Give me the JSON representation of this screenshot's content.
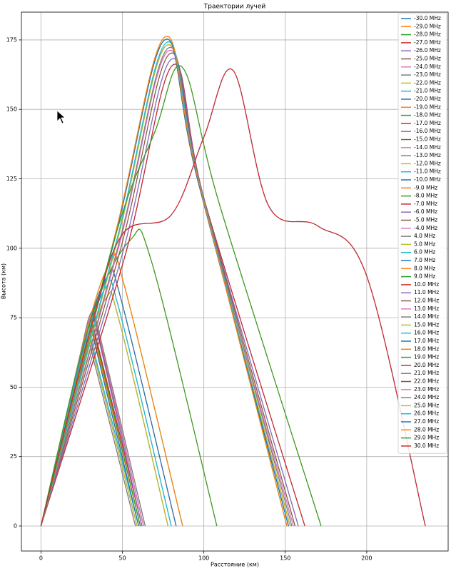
{
  "chart_data": {
    "type": "line",
    "title": "Траектории лучей",
    "x_label": "Расстояние (км)",
    "y_label": "Высота (км)",
    "xlim": [
      -12,
      250
    ],
    "ylim": [
      -9,
      185
    ],
    "xticks": [
      0,
      50,
      100,
      150,
      200
    ],
    "yticks": [
      0,
      25,
      50,
      75,
      100,
      125,
      150,
      175
    ],
    "grid": true,
    "legend": "upper right",
    "series": [
      {
        "name": "-30.0 MHz",
        "color": "#1f77b4",
        "x": [
          0,
          30,
          50,
          80,
          100,
          118,
          140,
          170,
          200,
          236
        ],
        "values": [
          0,
          70,
          105,
          112,
          140,
          164,
          115,
          108,
          90,
          0
        ]
      },
      {
        "name": "-29.0 MHz",
        "color": "#ff7f0e",
        "x": [
          0,
          45,
          70,
          87,
          110,
          172
        ],
        "values": [
          0,
          103,
          142,
          165,
          115,
          0
        ]
      },
      {
        "name": "-28.0 MHz",
        "color": "#2ca02c",
        "x": [
          0,
          46,
          76,
          96,
          151
        ],
        "values": [
          0,
          106,
          176,
          126,
          0
        ]
      },
      {
        "name": "-27.0 MHz",
        "color": "#d62728",
        "x": [
          0,
          46,
          76,
          96,
          152
        ],
        "values": [
          0,
          105,
          175,
          125,
          0
        ]
      },
      {
        "name": "-26.0 MHz",
        "color": "#9467bd",
        "x": [
          0,
          47,
          77,
          97,
          152
        ],
        "values": [
          0,
          104,
          174,
          124,
          0
        ]
      },
      {
        "name": "-25.0 MHz",
        "color": "#8c564b",
        "x": [
          0,
          47,
          77,
          97,
          153
        ],
        "values": [
          0,
          103,
          173,
          123,
          0
        ]
      },
      {
        "name": "-24.0 MHz",
        "color": "#e377c2",
        "x": [
          0,
          48,
          78,
          98,
          154
        ],
        "values": [
          0,
          102,
          172,
          122,
          0
        ]
      },
      {
        "name": "-23.0 MHz",
        "color": "#7f7f7f",
        "x": [
          0,
          48,
          78,
          98,
          155
        ],
        "values": [
          0,
          101,
          171,
          121,
          0
        ]
      },
      {
        "name": "-22.0 MHz",
        "color": "#bcbd22",
        "x": [
          0,
          49,
          79,
          99,
          156
        ],
        "values": [
          0,
          100,
          170,
          120,
          0
        ]
      },
      {
        "name": "-21.0 MHz",
        "color": "#17becf",
        "x": [
          0,
          50,
          80,
          100,
          158
        ],
        "values": [
          0,
          98,
          168,
          118,
          0
        ]
      },
      {
        "name": "-20.0 MHz",
        "color": "#1f77b4",
        "x": [
          0,
          51,
          81,
          101,
          162
        ],
        "values": [
          0,
          96,
          166,
          116,
          0
        ]
      },
      {
        "name": "-19.0 MHz",
        "color": "#ff7f0e",
        "x": [
          0,
          30,
          55,
          68,
          108
        ],
        "values": [
          0,
          73,
          103,
          95,
          0
        ]
      },
      {
        "name": "-18.0 MHz",
        "color": "#2ca02c",
        "x": [
          0,
          28,
          43,
          51,
          87
        ],
        "values": [
          0,
          70,
          95,
          87,
          0
        ]
      },
      {
        "name": "-17.0 MHz",
        "color": "#d62728",
        "x": [
          0,
          26,
          41,
          49,
          83
        ],
        "values": [
          0,
          65,
          90,
          82,
          0
        ]
      },
      {
        "name": "-16.0 MHz",
        "color": "#9467bd",
        "x": [
          0,
          25,
          40,
          48,
          80
        ],
        "values": [
          0,
          61,
          86,
          78,
          0
        ]
      },
      {
        "name": "-15.0 MHz",
        "color": "#8c564b",
        "x": [
          0,
          25,
          40,
          48,
          78
        ],
        "values": [
          0,
          57,
          82,
          74,
          0
        ]
      },
      {
        "name": "-14.0 MHz",
        "color": "#e377c2",
        "x": [
          0,
          23,
          31,
          36,
          64
        ],
        "values": [
          0,
          59,
          77,
          69,
          0
        ]
      },
      {
        "name": "-13.0 MHz",
        "color": "#7f7f7f",
        "x": [
          0,
          23,
          31,
          36,
          63
        ],
        "values": [
          0,
          58,
          76,
          68,
          0
        ]
      },
      {
        "name": "-12.0 MHz",
        "color": "#bcbd22",
        "x": [
          0,
          23,
          31,
          36,
          63
        ],
        "values": [
          0,
          57,
          75,
          67,
          0
        ]
      },
      {
        "name": "-11.0 MHz",
        "color": "#17becf",
        "x": [
          0,
          23,
          31,
          36,
          62
        ],
        "values": [
          0,
          56,
          74,
          66,
          0
        ]
      },
      {
        "name": "-10.0 MHz",
        "color": "#1f77b4",
        "x": [
          0,
          22,
          30,
          35,
          62
        ],
        "values": [
          0,
          55,
          73,
          65,
          0
        ]
      },
      {
        "name": "-9.0 MHz",
        "color": "#ff7f0e",
        "x": [
          0,
          22,
          30,
          35,
          61
        ],
        "values": [
          0,
          54,
          72,
          64,
          0
        ]
      },
      {
        "name": "-8.0 MHz",
        "color": "#2ca02c",
        "x": [
          0,
          22,
          30,
          35,
          61
        ],
        "values": [
          0,
          52.5,
          70.5,
          62.5,
          0
        ]
      },
      {
        "name": "-7.0 MHz",
        "color": "#d62728",
        "x": [
          0,
          22,
          30,
          35,
          60
        ],
        "values": [
          0,
          51,
          69,
          61,
          0
        ]
      },
      {
        "name": "-6.0 MHz",
        "color": "#9467bd",
        "x": [
          0,
          21,
          29,
          34,
          60
        ],
        "values": [
          0,
          49.5,
          67.5,
          59.5,
          0
        ]
      },
      {
        "name": "-5.0 MHz",
        "color": "#8c564b",
        "x": [
          0,
          21,
          29,
          34,
          59
        ],
        "values": [
          0,
          48,
          66,
          58,
          0
        ]
      },
      {
        "name": "-4.0 MHz",
        "color": "#e377c2",
        "x": [
          0,
          21,
          29,
          34,
          58
        ],
        "values": [
          0,
          46,
          64,
          56,
          0
        ]
      },
      {
        "name": "4.0 MHz",
        "color": "#7f7f7f",
        "x": [
          0,
          21,
          29,
          34,
          58
        ],
        "values": [
          0,
          46,
          64,
          56,
          0
        ]
      },
      {
        "name": "5.0 MHz",
        "color": "#bcbd22",
        "x": [
          0,
          21,
          29,
          34,
          59
        ],
        "values": [
          0,
          48,
          66,
          58,
          0
        ]
      },
      {
        "name": "6.0 MHz",
        "color": "#17becf",
        "x": [
          0,
          21,
          29,
          34,
          60
        ],
        "values": [
          0,
          49.5,
          67.5,
          59.5,
          0
        ]
      },
      {
        "name": "7.0 MHz",
        "color": "#1f77b4",
        "x": [
          0,
          22,
          30,
          35,
          60
        ],
        "values": [
          0,
          51,
          69,
          61,
          0
        ]
      },
      {
        "name": "8.0 MHz",
        "color": "#ff7f0e",
        "x": [
          0,
          22,
          30,
          35,
          61
        ],
        "values": [
          0,
          52.5,
          70.5,
          62.5,
          0
        ]
      },
      {
        "name": "9.0 MHz",
        "color": "#2ca02c",
        "x": [
          0,
          22,
          30,
          35,
          61
        ],
        "values": [
          0,
          54,
          72,
          64,
          0
        ]
      },
      {
        "name": "10.0 MHz",
        "color": "#d62728",
        "x": [
          0,
          22,
          30,
          35,
          62
        ],
        "values": [
          0,
          55,
          73,
          65,
          0
        ]
      },
      {
        "name": "11.0 MHz",
        "color": "#9467bd",
        "x": [
          0,
          23,
          31,
          36,
          62
        ],
        "values": [
          0,
          56,
          74,
          66,
          0
        ]
      },
      {
        "name": "12.0 MHz",
        "color": "#8c564b",
        "x": [
          0,
          23,
          31,
          36,
          63
        ],
        "values": [
          0,
          57,
          75,
          67,
          0
        ]
      },
      {
        "name": "13.0 MHz",
        "color": "#e377c2",
        "x": [
          0,
          23,
          31,
          36,
          63
        ],
        "values": [
          0,
          58,
          76,
          68,
          0
        ]
      },
      {
        "name": "14.0 MHz",
        "color": "#7f7f7f",
        "x": [
          0,
          23,
          31,
          36,
          64
        ],
        "values": [
          0,
          59,
          77,
          69,
          0
        ]
      },
      {
        "name": "15.0 MHz",
        "color": "#bcbd22",
        "x": [
          0,
          25,
          40,
          48,
          78
        ],
        "values": [
          0,
          57,
          82,
          74,
          0
        ]
      },
      {
        "name": "16.0 MHz",
        "color": "#17becf",
        "x": [
          0,
          25,
          40,
          48,
          80
        ],
        "values": [
          0,
          61,
          86,
          78,
          0
        ]
      },
      {
        "name": "17.0 MHz",
        "color": "#1f77b4",
        "x": [
          0,
          26,
          41,
          49,
          83
        ],
        "values": [
          0,
          65,
          90,
          82,
          0
        ]
      },
      {
        "name": "18.0 MHz",
        "color": "#ff7f0e",
        "x": [
          0,
          28,
          43,
          51,
          87
        ],
        "values": [
          0,
          70,
          95,
          87,
          0
        ]
      },
      {
        "name": "19.0 MHz",
        "color": "#2ca02c",
        "x": [
          0,
          30,
          55,
          68,
          108
        ],
        "values": [
          0,
          73,
          103,
          95,
          0
        ]
      },
      {
        "name": "20.0 MHz",
        "color": "#d62728",
        "x": [
          0,
          51,
          81,
          101,
          162
        ],
        "values": [
          0,
          96,
          166,
          116,
          0
        ]
      },
      {
        "name": "21.0 MHz",
        "color": "#9467bd",
        "x": [
          0,
          50,
          80,
          100,
          158
        ],
        "values": [
          0,
          98,
          168,
          118,
          0
        ]
      },
      {
        "name": "22.0 MHz",
        "color": "#8c564b",
        "x": [
          0,
          49,
          79,
          99,
          156
        ],
        "values": [
          0,
          100,
          170,
          120,
          0
        ]
      },
      {
        "name": "23.0 MHz",
        "color": "#e377c2",
        "x": [
          0,
          48,
          78,
          98,
          155
        ],
        "values": [
          0,
          101,
          171,
          121,
          0
        ]
      },
      {
        "name": "24.0 MHz",
        "color": "#7f7f7f",
        "x": [
          0,
          48,
          78,
          98,
          154
        ],
        "values": [
          0,
          102,
          172,
          122,
          0
        ]
      },
      {
        "name": "25.0 MHz",
        "color": "#bcbd22",
        "x": [
          0,
          47,
          77,
          97,
          153
        ],
        "values": [
          0,
          103,
          173,
          123,
          0
        ]
      },
      {
        "name": "26.0 MHz",
        "color": "#17becf",
        "x": [
          0,
          47,
          77,
          97,
          152
        ],
        "values": [
          0,
          104,
          174,
          124,
          0
        ]
      },
      {
        "name": "27.0 MHz",
        "color": "#1f77b4",
        "x": [
          0,
          46,
          76,
          96,
          152
        ],
        "values": [
          0,
          105,
          175,
          125,
          0
        ]
      },
      {
        "name": "28.0 MHz",
        "color": "#ff7f0e",
        "x": [
          0,
          46,
          76,
          96,
          151
        ],
        "values": [
          0,
          106,
          176,
          126,
          0
        ]
      },
      {
        "name": "29.0 MHz",
        "color": "#2ca02c",
        "x": [
          0,
          45,
          70,
          87,
          110,
          172
        ],
        "values": [
          0,
          103,
          142,
          165,
          115,
          0
        ]
      },
      {
        "name": "30.0 MHz",
        "color": "#d62728",
        "x": [
          0,
          30,
          50,
          80,
          100,
          118,
          140,
          170,
          200,
          236
        ],
        "values": [
          0,
          70,
          105,
          112,
          140,
          164,
          115,
          108,
          90,
          0
        ]
      }
    ]
  }
}
